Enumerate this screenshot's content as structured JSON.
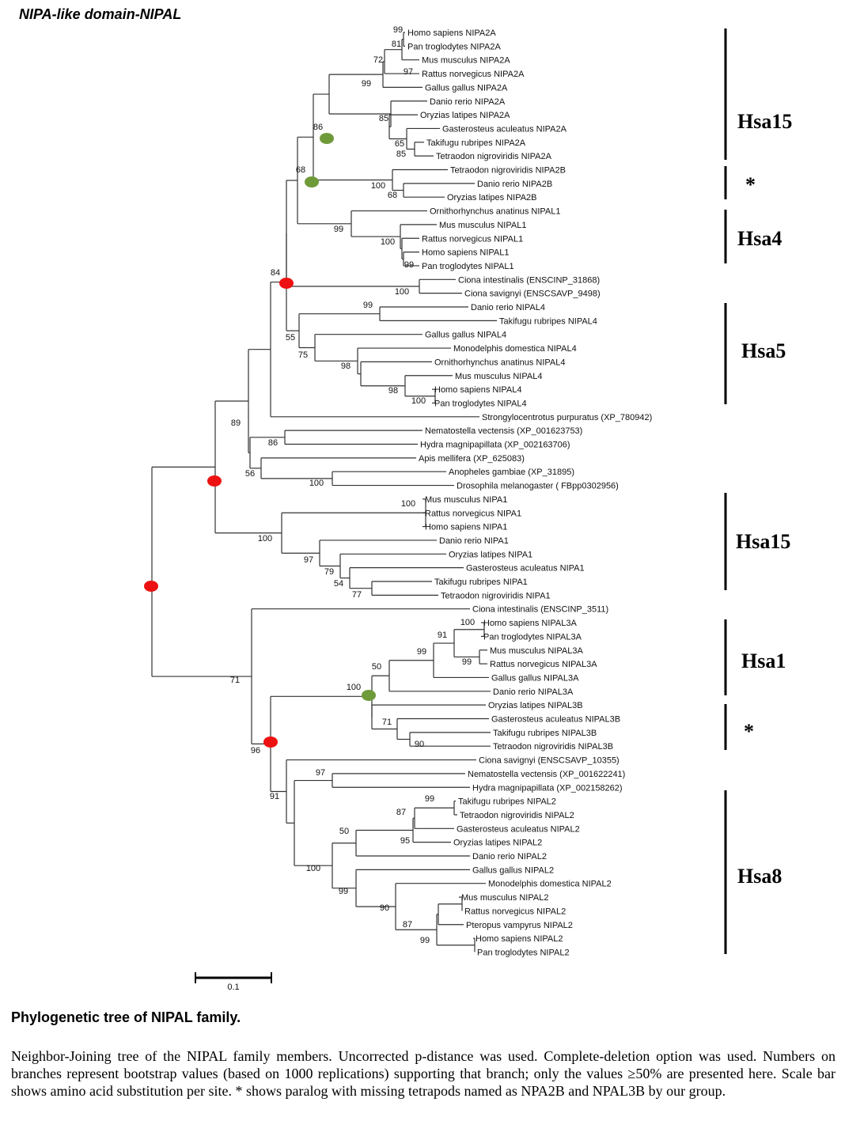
{
  "title": "NIPA-like domain-NIPAL",
  "tree": {
    "leaves": [
      "Homo sapiens NIPA2A",
      "Pan troglodytes NIPA2A",
      "Mus musculus NIPA2A",
      "Rattus norvegicus NIPA2A",
      "Gallus gallus NIPA2A",
      "Danio rerio NIPA2A",
      "Oryzias latipes NIPA2A",
      "Gasterosteus aculeatus NIPA2A",
      "Takifugu rubripes NIPA2A",
      "Tetraodon nigroviridis NIPA2A",
      "Tetraodon nigroviridis NIPA2B",
      "Danio rerio NIPA2B",
      "Oryzias latipes NIPA2B",
      "Ornithorhynchus anatinus NIPAL1",
      "Mus musculus NIPAL1",
      "Rattus norvegicus NIPAL1",
      "Homo sapiens NIPAL1",
      "Pan troglodytes NIPAL1",
      "Ciona intestinalis (ENSCINP_31868)",
      "Ciona savignyi (ENSCSAVP_9498)",
      "Danio rerio NIPAL4",
      "Takifugu rubripes NIPAL4",
      "Gallus gallus NIPAL4",
      "Monodelphis domestica NIPAL4",
      "Ornithorhynchus anatinus NIPAL4",
      "Mus musculus NIPAL4",
      "Homo sapiens NIPAL4",
      "Pan troglodytes NIPAL4",
      "Strongylocentrotus purpuratus (XP_780942)",
      "Nematostella vectensis (XP_001623753)",
      "Hydra magnipapillata (XP_002163706)",
      "Apis mellifera (XP_625083)",
      "Anopheles gambiae (XP_31895)",
      "Drosophila melanogaster ( FBpp0302956)",
      "Mus musculus NIPA1",
      "Rattus norvegicus NIPA1",
      "Homo sapiens NIPA1",
      "Danio rerio NIPA1",
      "Oryzias latipes NIPA1",
      "Gasterosteus aculeatus NIPA1",
      "Takifugu rubripes NIPA1",
      "Tetraodon nigroviridis NIPA1",
      "Ciona intestinalis (ENSCINP_3511)",
      "Homo sapiens NIPAL3A",
      "Pan troglodytes NIPAL3A",
      "Mus musculus NIPAL3A",
      "Rattus norvegicus NIPAL3A",
      "Gallus gallus NIPAL3A",
      "Danio rerio NIPAL3A",
      "Oryzias latipes NIPAL3B",
      "Gasterosteus aculeatus NIPAL3B",
      "Takifugu rubripes NIPAL3B",
      "Tetraodon nigroviridis NIPAL3B",
      "Ciona savignyi (ENSCSAVP_10355)",
      "Nematostella vectensis (XP_001622241)",
      "Hydra magnipapillata (XP_002158262)",
      "Takifugu rubripes NIPAL2",
      "Tetraodon nigroviridis NIPAL2",
      "Gasterosteus aculeatus NIPAL2",
      "Oryzias latipes NIPAL2",
      "Danio rerio NIPAL2",
      "Gallus gallus NIPAL2",
      "Monodelphis domestica NIPAL2",
      "Mus musculus NIPAL2",
      "Rattus norvegicus NIPAL2",
      "Pteropus vampyrus NIPAL2",
      "Homo sapiens NIPAL2",
      "Pan troglodytes NIPAL2"
    ],
    "bootstrap": [
      "99",
      "81",
      "72",
      "97",
      "99",
      "85",
      "65",
      "85",
      "86",
      "100",
      "68",
      "68",
      "99",
      "100",
      "99",
      "84",
      "100",
      "99",
      "55",
      "75",
      "98",
      "98",
      "100",
      "89",
      "86",
      "56",
      "100",
      "100",
      "100",
      "97",
      "79",
      "54",
      "77",
      "100",
      "91",
      "99",
      "99",
      "50",
      "100",
      "71",
      "90",
      "71",
      "96",
      "97",
      "99",
      "87",
      "50",
      "95",
      "91",
      "100",
      "99",
      "90",
      "87",
      "99"
    ],
    "groups": [
      "Hsa15",
      "*",
      "Hsa4",
      "Hsa5",
      "Hsa15",
      "Hsa1",
      "*",
      "Hsa8"
    ],
    "scale_label": "0.1",
    "marker_colors": {
      "red": "#ee1111",
      "green": "#6f9a3a"
    }
  },
  "caption": {
    "title": "Phylogenetic tree of  NIPAL family.",
    "text": "Neighbor-Joining tree of the NIPAL family members. Uncorrected p-distance was used. Complete-deletion option was used. Numbers on branches represent bootstrap values (based on 1000 replications) supporting that branch; only the values ≥50% are presented here. Scale bar shows amino acid substitution per site. * shows paralog with missing tetrapods named as NPA2B and NPAL3B by our group."
  }
}
